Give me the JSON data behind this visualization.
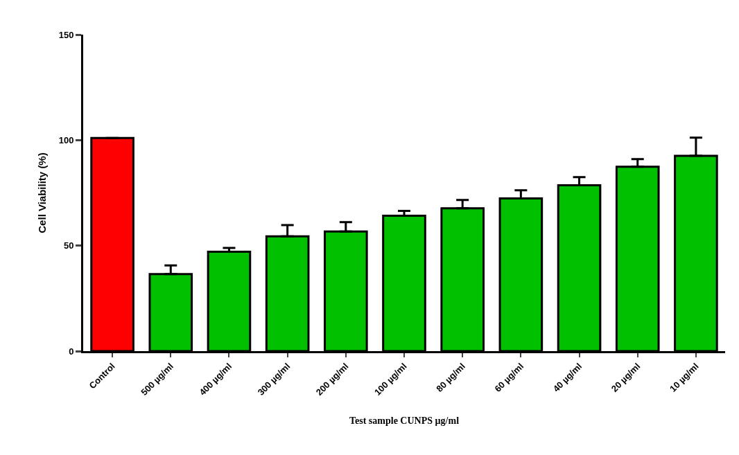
{
  "chart_data": {
    "type": "bar",
    "ylabel": "Cell Viability (%)",
    "xlabel": "Test sample CUNPS µg/ml",
    "categories": [
      "Control",
      "500 µg/ml",
      "400 µg/ml",
      "300 µg/ml",
      "200 µg/ml",
      "100 µg/ml",
      "80 µg/ml",
      "60 µg/ml",
      "40 µg/ml",
      "20 µg/ml",
      "10 µg/ml"
    ],
    "values": [
      101,
      36.5,
      47.1,
      54.4,
      56.7,
      64.2,
      67.7,
      72.4,
      78.6,
      87.4,
      92.6
    ],
    "colors": [
      "#ff0000",
      "#00c000",
      "#00c000",
      "#00c000",
      "#00c000",
      "#00c000",
      "#00c000",
      "#00c000",
      "#00c000",
      "#00c000",
      "#00c000"
    ],
    "errors": [
      null,
      [
        36.5,
        40.6
      ],
      [
        47.1,
        48.9
      ],
      [
        54.4,
        59.7
      ],
      [
        56.7,
        61.1
      ],
      [
        64.2,
        66.5
      ],
      [
        67.7,
        71.6
      ],
      [
        72.4,
        76.2
      ],
      [
        78.6,
        82.5
      ],
      [
        87.4,
        91.0
      ],
      [
        92.6,
        101.2
      ]
    ],
    "ylim": [
      0,
      150
    ],
    "yticks": [
      0,
      50,
      100,
      150
    ]
  }
}
